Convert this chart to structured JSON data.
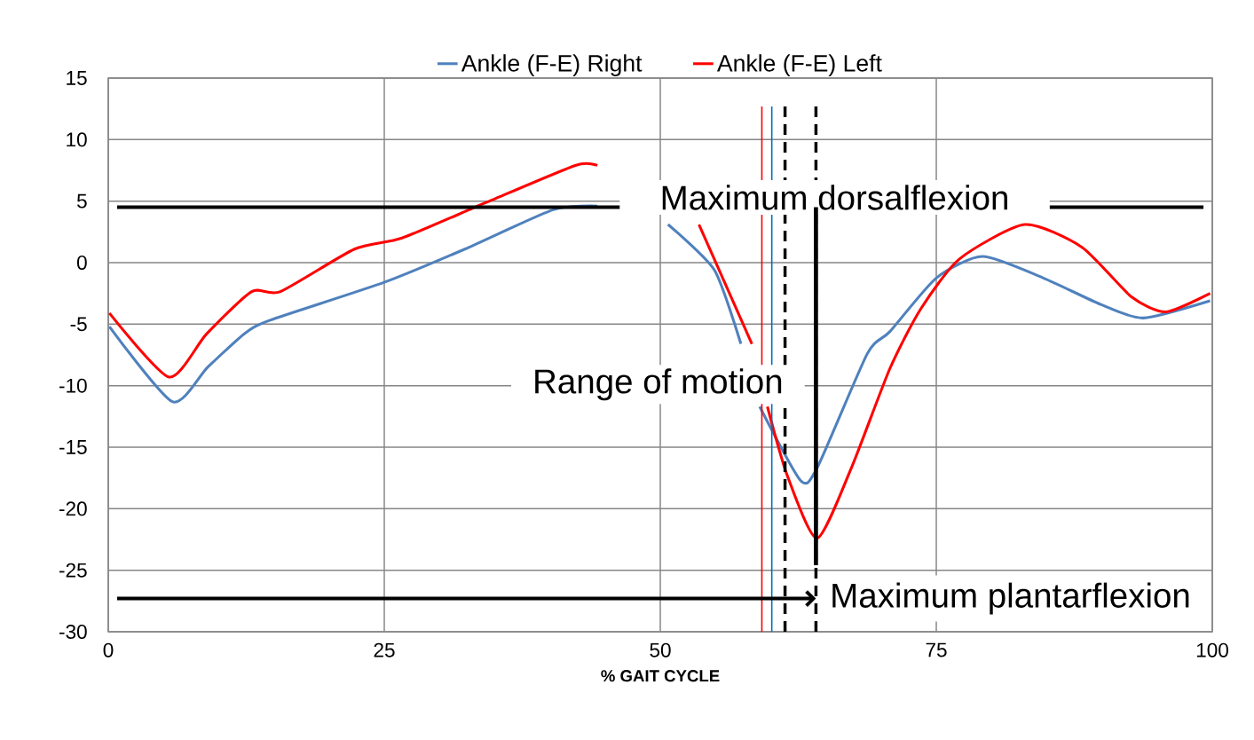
{
  "chart_data": {
    "type": "line",
    "xlabel": "% GAIT CYCLE",
    "xlim": [
      0,
      100
    ],
    "xticks": [
      0,
      25,
      50,
      75,
      100
    ],
    "ylim": [
      -30,
      15
    ],
    "yticks": [
      -30,
      -25,
      -20,
      -15,
      -10,
      -5,
      0,
      5,
      10,
      15
    ],
    "grid": true,
    "legend": "top",
    "line_style": "solid",
    "marker": "none",
    "series": [
      {
        "name": "Ankle (F-E) Right",
        "color": "#4f81bd",
        "x": [
          0.1,
          5.8,
          9,
          12.3,
          14.6,
          25,
          32.3,
          40.3,
          44.3,
          47,
          50.7,
          54.9,
          57.3,
          58,
          59,
          62.7,
          64.2,
          68.75,
          70.8,
          75,
          79.2,
          84.7,
          89.9,
          93.75,
          99.8
        ],
        "values": [
          -5.2,
          -11.3,
          -8.5,
          -5.8,
          -4.7,
          -1.6,
          1.1,
          4.3,
          4.6,
          null,
          3.1,
          -0.6,
          -6.6,
          null,
          -11.7,
          -17.7,
          -16.7,
          -7.4,
          -5.6,
          -1.25,
          0.5,
          -1.25,
          -3.4,
          -4.5,
          -3.1
        ]
      },
      {
        "name": "Ankle (F-E) Left",
        "color": "#ff0000",
        "x": [
          0.1,
          5.5,
          8.9,
          13,
          15.6,
          22.3,
          26.6,
          34,
          42.3,
          44.3,
          48,
          53.5,
          58.3,
          59,
          59.7,
          61.5,
          64.2,
          67.3,
          70.8,
          73.6,
          77.1,
          83,
          88.2,
          92.7,
          95.8,
          99.8
        ],
        "values": [
          -4.1,
          -9.3,
          -5.8,
          -2.35,
          -2.35,
          1.1,
          2.0,
          4.8,
          7.9,
          7.9,
          null,
          3.1,
          -6.6,
          null,
          -11.7,
          -17.3,
          -22.4,
          -16.7,
          -8.6,
          -3.75,
          0.3,
          3.1,
          1.25,
          -2.8,
          -4.0,
          -2.5
        ]
      }
    ],
    "ref_lines": [
      {
        "axis": "x",
        "value": 59.2,
        "color": "#ff0000",
        "line_style": "solid"
      },
      {
        "axis": "x",
        "value": 60.1,
        "color": "#0070c0",
        "line_style": "solid"
      },
      {
        "axis": "x",
        "value": 61.3,
        "color": "#000000",
        "line_style": "dashed"
      },
      {
        "axis": "x",
        "value": 64.1,
        "color": "#000000",
        "line_style": "dashed"
      },
      {
        "axis": "y",
        "value": 4.5,
        "label": "Maximum dorsalflexion",
        "color": "#000000",
        "line_style": "solid"
      },
      {
        "axis": "y",
        "value": -27.3,
        "label": "Maximum plantarflexion",
        "color": "#000000",
        "line_style": "solid"
      }
    ],
    "annotations": [
      "Range of motion"
    ]
  }
}
